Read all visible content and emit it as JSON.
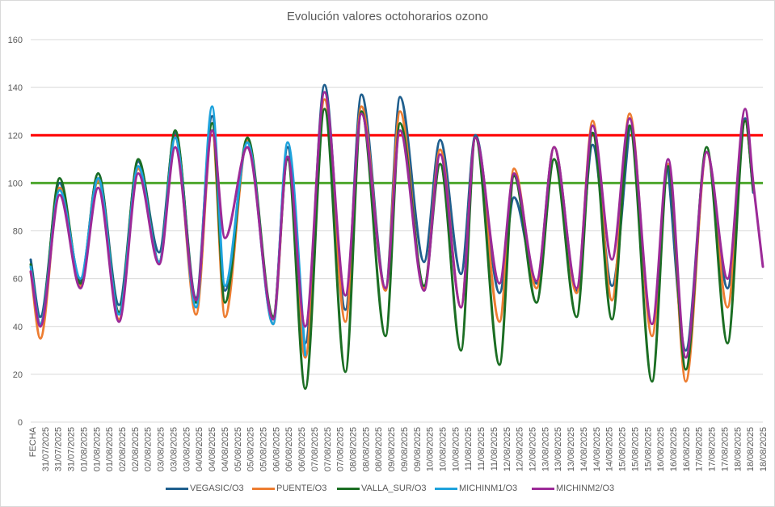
{
  "chart_data": {
    "type": "line",
    "title": "Evolución valores octohorarios ozono",
    "xlabel": "",
    "ylabel": "",
    "ylim": [
      0,
      160
    ],
    "yticks": [
      0,
      20,
      40,
      60,
      80,
      100,
      120,
      140,
      160
    ],
    "grid": true,
    "legend_position": "bottom",
    "xlim": [
      "31/07/2025 00:00",
      "19/08/2025 00:00"
    ],
    "x_tick_labels": [
      "FECHA",
      "31/07/2025",
      "31/07/2025",
      "31/07/2025",
      "01/08/2025",
      "01/08/2025",
      "01/08/2025",
      "02/08/2025",
      "02/08/2025",
      "02/08/2025",
      "03/08/2025",
      "03/08/2025",
      "03/08/2025",
      "04/08/2025",
      "04/08/2025",
      "04/08/2025",
      "05/08/2025",
      "05/08/2025",
      "05/08/2025",
      "06/08/2025",
      "06/08/2025",
      "06/08/2025",
      "07/08/2025",
      "07/08/2025",
      "07/08/2025",
      "08/08/2025",
      "08/08/2025",
      "08/08/2025",
      "09/08/2025",
      "09/08/2025",
      "09/08/2025",
      "10/08/2025",
      "10/08/2025",
      "10/08/2025",
      "11/08/2025",
      "11/08/2025",
      "11/08/2025",
      "12/08/2025",
      "12/08/2025",
      "12/08/2025",
      "13/08/2025",
      "13/08/2025",
      "13/08/2025",
      "14/08/2025",
      "14/08/2025",
      "14/08/2025",
      "15/08/2025",
      "15/08/2025",
      "15/08/2025",
      "16/08/2025",
      "16/08/2025",
      "16/08/2025",
      "17/08/2025",
      "17/08/2025",
      "17/08/2025",
      "18/08/2025",
      "18/08/2025",
      "18/08/2025"
    ],
    "x": [
      "31/07/2025 00:00",
      "31/07/2025 06:00",
      "31/07/2025 18:00",
      "01/08/2025 07:00",
      "01/08/2025 18:00",
      "02/08/2025 07:00",
      "02/08/2025 19:00",
      "03/08/2025 08:00",
      "03/08/2025 18:00",
      "04/08/2025 07:00",
      "04/08/2025 17:00",
      "05/08/2025 01:00",
      "05/08/2025 15:00",
      "06/08/2025 07:00",
      "06/08/2025 16:00",
      "07/08/2025 03:00",
      "07/08/2025 15:00",
      "08/08/2025 04:00",
      "08/08/2025 14:00",
      "09/08/2025 05:00",
      "09/08/2025 14:00",
      "10/08/2025 05:00",
      "10/08/2025 15:00",
      "11/08/2025 04:00",
      "11/08/2025 13:00",
      "12/08/2025 04:00",
      "12/08/2025 13:00",
      "13/08/2025 03:00",
      "13/08/2025 14:00",
      "14/08/2025 04:00",
      "14/08/2025 14:00",
      "15/08/2025 02:00",
      "15/08/2025 13:00",
      "16/08/2025 03:00",
      "16/08/2025 13:00",
      "17/08/2025 00:00",
      "17/08/2025 13:00",
      "18/08/2025 02:00",
      "18/08/2025 13:00",
      "18/08/2025 18:00",
      "19/08/2025 00:00"
    ],
    "series": [
      {
        "name": "VEGASIC/O3",
        "color": "#1f5f8e",
        "values": [
          68,
          44,
          100,
          59,
          104,
          49,
          109,
          71,
          121,
          52,
          128,
          55,
          118,
          43,
          115,
          33,
          141,
          47,
          137,
          56,
          136,
          67,
          118,
          62,
          120,
          54,
          94,
          58,
          115,
          55,
          116,
          57,
          124,
          null,
          106,
          30,
          113,
          56,
          127,
          96,
          null
        ]
      },
      {
        "name": "PUENTE/O3",
        "color": "#ed7d31",
        "values": [
          63,
          35,
          98,
          57,
          101,
          43,
          106,
          67,
          119,
          45,
          122,
          44,
          118,
          41,
          111,
          27,
          135,
          42,
          132,
          55,
          130,
          56,
          114,
          48,
          119,
          42,
          106,
          56,
          115,
          54,
          126,
          51,
          129,
          36,
          108,
          17,
          113,
          48,
          126,
          98,
          null
        ]
      },
      {
        "name": "VALLA_SUR/O3",
        "color": "#1b6e23",
        "values": [
          66,
          41,
          102,
          58,
          104,
          46,
          110,
          67,
          122,
          50,
          125,
          50,
          119,
          44,
          110,
          14,
          131,
          21,
          130,
          36,
          125,
          57,
          108,
          30,
          119,
          24,
          103,
          50,
          110,
          44,
          121,
          43,
          124,
          17,
          107,
          22,
          115,
          33,
          126,
          97,
          null
        ]
      },
      {
        "name": "MICHINM1/O3",
        "color": "#1ea2dc",
        "values": [
          65,
          41,
          97,
          60,
          102,
          45,
          107,
          67,
          119,
          48,
          132,
          57,
          117,
          41,
          117,
          28,
          null,
          null,
          null,
          null,
          null,
          null,
          null,
          null,
          null,
          null,
          null,
          null,
          null,
          null,
          null,
          null,
          null,
          null,
          null,
          null,
          null,
          null,
          null,
          null,
          null
        ]
      },
      {
        "name": "MICHINM2/O3",
        "color": "#9c2a98",
        "values": [
          63,
          40,
          95,
          56,
          98,
          42,
          104,
          66,
          115,
          51,
          122,
          77,
          115,
          43,
          111,
          40,
          138,
          53,
          129,
          56,
          122,
          55,
          112,
          48,
          119,
          58,
          104,
          59,
          115,
          56,
          124,
          68,
          127,
          41,
          110,
          27,
          113,
          60,
          131,
          100,
          65
        ]
      }
    ],
    "reference_lines": [
      {
        "value": 120,
        "color": "#ff0000"
      },
      {
        "value": 100,
        "color": "#4ea72e"
      }
    ]
  }
}
